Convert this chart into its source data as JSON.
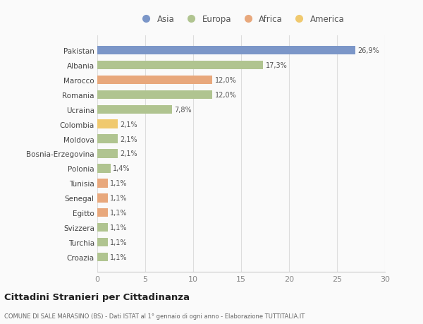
{
  "countries": [
    "Pakistan",
    "Albania",
    "Marocco",
    "Romania",
    "Ucraina",
    "Colombia",
    "Moldova",
    "Bosnia-Erzegovina",
    "Polonia",
    "Tunisia",
    "Senegal",
    "Egitto",
    "Svizzera",
    "Turchia",
    "Croazia"
  ],
  "values": [
    26.9,
    17.3,
    12.0,
    12.0,
    7.8,
    2.1,
    2.1,
    2.1,
    1.4,
    1.1,
    1.1,
    1.1,
    1.1,
    1.1,
    1.1
  ],
  "labels": [
    "26,9%",
    "17,3%",
    "12,0%",
    "12,0%",
    "7,8%",
    "2,1%",
    "2,1%",
    "2,1%",
    "1,4%",
    "1,1%",
    "1,1%",
    "1,1%",
    "1,1%",
    "1,1%",
    "1,1%"
  ],
  "continents": [
    "Asia",
    "Europa",
    "Africa",
    "Europa",
    "Europa",
    "America",
    "Europa",
    "Europa",
    "Europa",
    "Africa",
    "Africa",
    "Africa",
    "Europa",
    "Europa",
    "Europa"
  ],
  "colors": {
    "Asia": "#7b96c8",
    "Europa": "#b0c490",
    "Africa": "#e8a87c",
    "America": "#f0c96e"
  },
  "legend_order": [
    "Asia",
    "Europa",
    "Africa",
    "America"
  ],
  "title": "Cittadini Stranieri per Cittadinanza",
  "subtitle": "COMUNE DI SALE MARASINO (BS) - Dati ISTAT al 1° gennaio di ogni anno - Elaborazione TUTTITALIA.IT",
  "xlim": [
    0,
    30
  ],
  "xticks": [
    0,
    5,
    10,
    15,
    20,
    25,
    30
  ],
  "background_color": "#fafafa",
  "bar_height": 0.6
}
